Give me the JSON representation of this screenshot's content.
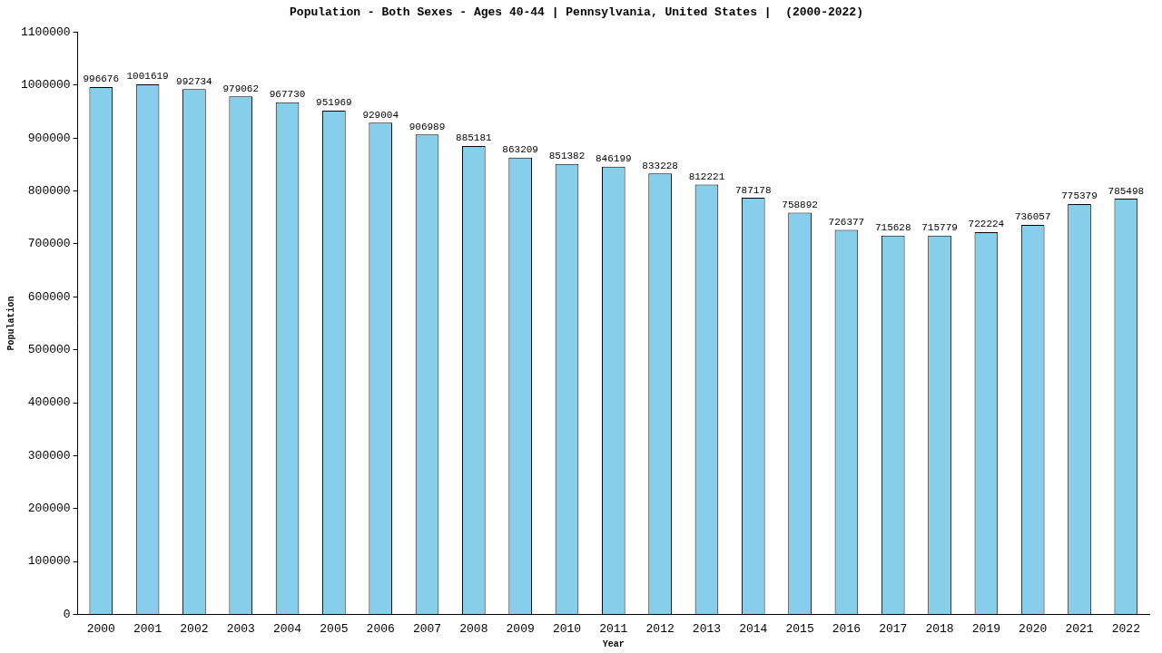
{
  "chart_data": {
    "type": "bar",
    "title": "Population - Both Sexes - Ages 40-44 | Pennsylvania, United States |  (2000-2022)",
    "x_label": "Year",
    "y_label": "Population",
    "categories": [
      "2000",
      "2001",
      "2002",
      "2003",
      "2004",
      "2005",
      "2006",
      "2007",
      "2008",
      "2009",
      "2010",
      "2011",
      "2012",
      "2013",
      "2014",
      "2015",
      "2016",
      "2017",
      "2018",
      "2019",
      "2020",
      "2021",
      "2022"
    ],
    "values": [
      996676,
      1001619,
      992734,
      979062,
      967730,
      951969,
      929004,
      906989,
      885181,
      863209,
      851382,
      846199,
      833228,
      812221,
      787178,
      758892,
      726377,
      715628,
      715779,
      722224,
      736057,
      775379,
      785498
    ],
    "color": "#87ceeb",
    "ylim": [
      0,
      1100000
    ],
    "yticks": [
      0,
      100000,
      200000,
      300000,
      400000,
      500000,
      600000,
      700000,
      800000,
      900000,
      1000000,
      1100000
    ],
    "grid": false,
    "data_labels": true
  }
}
